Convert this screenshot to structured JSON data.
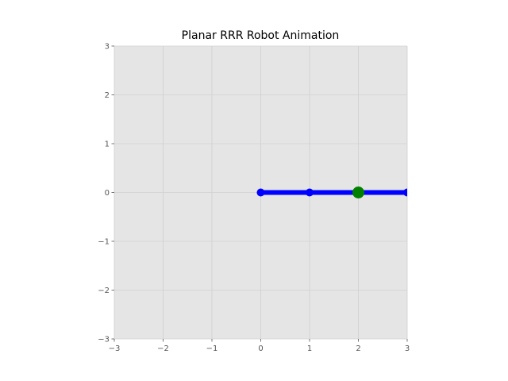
{
  "chart_data": {
    "type": "line",
    "title": "Planar RRR Robot Animation",
    "xlabel": "",
    "ylabel": "",
    "xlim": [
      -3,
      3
    ],
    "ylim": [
      -3,
      3
    ],
    "x_ticks": [
      -3,
      -2,
      -1,
      0,
      1,
      2,
      3
    ],
    "y_ticks": [
      -3,
      -2,
      -1,
      0,
      1,
      2,
      3
    ],
    "x_tick_labels": [
      "−3",
      "−2",
      "−1",
      "0",
      "1",
      "2",
      "3"
    ],
    "y_tick_labels": [
      "−3",
      "−2",
      "−1",
      "0",
      "1",
      "2",
      "3"
    ],
    "grid": true,
    "series": [
      {
        "x": [
          0,
          1,
          2,
          3
        ],
        "y": [
          0,
          0,
          0,
          0
        ],
        "color": "#0000ff"
      }
    ],
    "highlight_point": {
      "x": 2,
      "y": 0,
      "color": "#008000"
    },
    "background_color": "#e5e5e5",
    "grid_color": "#d0d0d0"
  }
}
